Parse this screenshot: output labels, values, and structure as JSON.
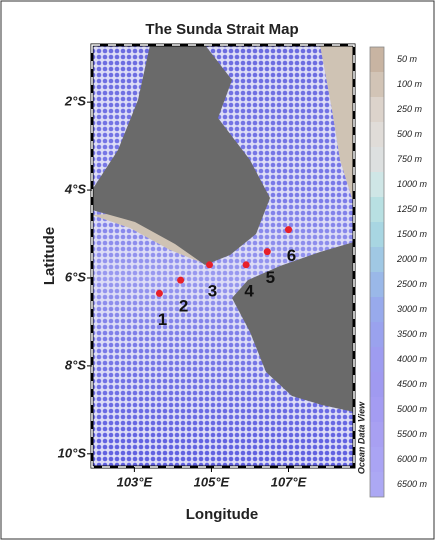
{
  "title": "The Sunda Strait Map",
  "x_label": "Longitude",
  "y_label": "Latitude",
  "watermark": "Ocean Data View",
  "map": {
    "xlim": [
      101.9,
      108.7
    ],
    "ylim": [
      -10.3,
      -0.7
    ],
    "xticks": [
      {
        "value": 103,
        "label": "103°E"
      },
      {
        "value": 105,
        "label": "105°E"
      },
      {
        "value": 107,
        "label": "107°E"
      }
    ],
    "yticks": [
      {
        "value": -2,
        "label": "2°S"
      },
      {
        "value": -4,
        "label": "4°S"
      },
      {
        "value": -6,
        "label": "6°S"
      },
      {
        "value": -8,
        "label": "8°S"
      },
      {
        "value": -10,
        "label": "10°S"
      }
    ],
    "station_color": "#e8202a"
  },
  "stations": [
    {
      "label": "1",
      "lon": 103.65,
      "lat": -6.35
    },
    {
      "label": "2",
      "lon": 104.2,
      "lat": -6.05
    },
    {
      "label": "3",
      "lon": 104.95,
      "lat": -5.7
    },
    {
      "label": "4",
      "lon": 105.9,
      "lat": -5.7
    },
    {
      "label": "5",
      "lon": 106.45,
      "lat": -5.4
    },
    {
      "label": "6",
      "lon": 107.0,
      "lat": -4.9
    }
  ],
  "colorbar": [
    {
      "value": 50,
      "label": "50 m",
      "color": "#c8b4a2"
    },
    {
      "value": 100,
      "label": "100 m",
      "color": "#d2c4b6"
    },
    {
      "value": 250,
      "label": "250 m",
      "color": "#dcd3cb"
    },
    {
      "value": 500,
      "label": "500 m",
      "color": "#e0dcd8"
    },
    {
      "value": 750,
      "label": "750 m",
      "color": "#dde0e0"
    },
    {
      "value": 1000,
      "label": "1000 m",
      "color": "#cfe6e6"
    },
    {
      "value": 1250,
      "label": "1250 m",
      "color": "#b8e0e2"
    },
    {
      "value": 1500,
      "label": "1500 m",
      "color": "#a8d6e2"
    },
    {
      "value": 2000,
      "label": "2000 m",
      "color": "#a0c8e4"
    },
    {
      "value": 2500,
      "label": "2500 m",
      "color": "#9ab8e8"
    },
    {
      "value": 3000,
      "label": "3000 m",
      "color": "#98aaec"
    },
    {
      "value": 3500,
      "label": "3500 m",
      "color": "#9aa2ee"
    },
    {
      "value": 4000,
      "label": "4000 m",
      "color": "#9e9cf0"
    },
    {
      "value": 4500,
      "label": "4500 m",
      "color": "#a09af0"
    },
    {
      "value": 5000,
      "label": "5000 m",
      "color": "#a49cf2"
    },
    {
      "value": 5500,
      "label": "5500 m",
      "color": "#a8a0f2"
    },
    {
      "value": 6000,
      "label": "6000 m",
      "color": "#aaa4f4"
    },
    {
      "value": 6500,
      "label": "6500 m",
      "color": "#aca8f4"
    }
  ]
}
